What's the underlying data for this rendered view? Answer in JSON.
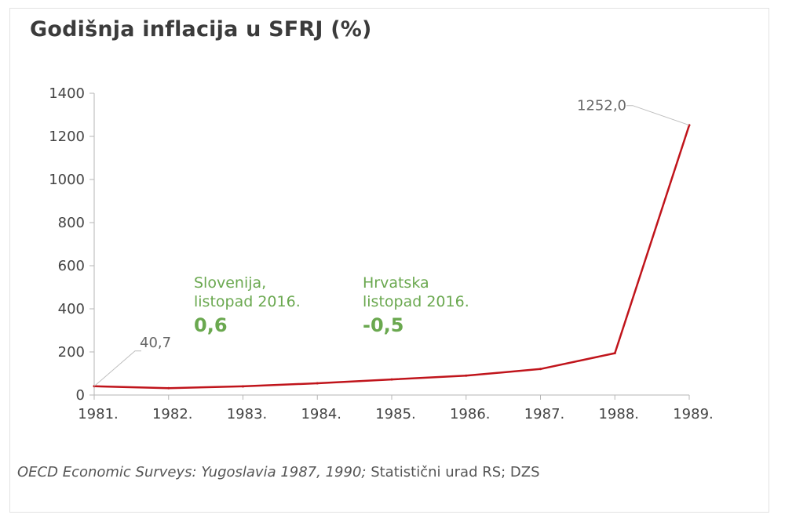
{
  "chart_data": {
    "type": "line",
    "title": "Godišnja inflacija u SFRJ (%)",
    "categories": [
      "1981.",
      "1982.",
      "1983.",
      "1984.",
      "1985.",
      "1986.",
      "1987.",
      "1988.",
      "1989."
    ],
    "series": [
      {
        "values": [
          40.7,
          31.7,
          40.2,
          54.7,
          72.3,
          89.8,
          120.8,
          194.1,
          1252.0
        ]
      }
    ],
    "ylim": [
      0,
      1400
    ],
    "yticks": [
      0,
      200,
      400,
      600,
      800,
      1000,
      1200,
      1400
    ],
    "grid": false,
    "line_color": "#c0141b",
    "annotations": [
      {
        "label": "40,7",
        "category": "1981.",
        "value": 40.7
      },
      {
        "label": "1252,0",
        "category": "1989.",
        "value": 1252.0
      }
    ],
    "notes": [
      {
        "line1": "Slovenija,",
        "line2": "listopad 2016.",
        "value": "0,6"
      },
      {
        "line1": "Hrvatska",
        "line2": "listopad 2016.",
        "value": "-0,5"
      }
    ],
    "note_color": "#6aa84f"
  },
  "source": {
    "italic": "OECD Economic Surveys: Yugoslavia 1987, 1990;",
    "rest": " Statistični urad RS; DZS"
  }
}
